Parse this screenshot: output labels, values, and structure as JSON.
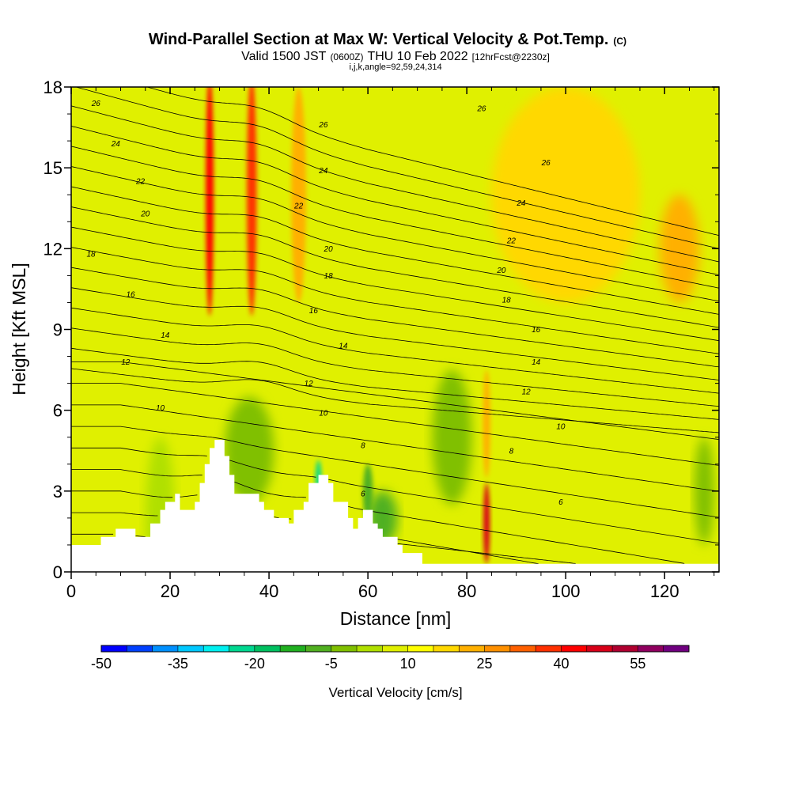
{
  "chart_data": {
    "type": "heatmap",
    "title": "Wind-Parallel Section at Max W: Vertical Velocity & Pot.Temp.",
    "title_unit": "(C)",
    "subtitle_valid": "Valid 1500 JST",
    "subtitle_utc": "(0600Z)",
    "subtitle_date": "THU 10 Feb 2022",
    "subtitle_fcst": "[12hrFcst@2230z]",
    "subtitle_index": "i,j,k,angle=92,59,24,314",
    "xlabel": "Distance [nm]",
    "ylabel": "Height [Kft MSL]",
    "xlim": [
      0,
      131
    ],
    "ylim": [
      0,
      18
    ],
    "xticks": [
      0,
      20,
      40,
      60,
      80,
      100,
      120
    ],
    "yticks": [
      0,
      3,
      6,
      9,
      12,
      15,
      18
    ],
    "colorbar": {
      "title": "Vertical Velocity [cm/s]",
      "min": -50,
      "max": 60,
      "step": 5,
      "tick_values": [
        -50,
        -35,
        -20,
        -5,
        10,
        25,
        40,
        55
      ],
      "colors": [
        "#0000ff",
        "#0040ff",
        "#0090ff",
        "#00c8ff",
        "#00f0f0",
        "#00d890",
        "#00c060",
        "#20b020",
        "#50b020",
        "#80c000",
        "#b0e000",
        "#e0f000",
        "#ffff00",
        "#ffd800",
        "#ffb000",
        "#ff9000",
        "#ff6000",
        "#ff3000",
        "#ff0000",
        "#d80018",
        "#b00030",
        "#900060",
        "#700080"
      ]
    },
    "terrain": [
      [
        0,
        1.0
      ],
      [
        6,
        1.0
      ],
      [
        6,
        1.3
      ],
      [
        9,
        1.3
      ],
      [
        9,
        1.6
      ],
      [
        13,
        1.6
      ],
      [
        13,
        1.3
      ],
      [
        16,
        1.3
      ],
      [
        16,
        1.8
      ],
      [
        18,
        1.8
      ],
      [
        18,
        2.3
      ],
      [
        19,
        2.3
      ],
      [
        19,
        2.6
      ],
      [
        21,
        2.6
      ],
      [
        21,
        2.9
      ],
      [
        22,
        2.9
      ],
      [
        22,
        2.3
      ],
      [
        25,
        2.3
      ],
      [
        25,
        2.6
      ],
      [
        26,
        2.6
      ],
      [
        26,
        3.3
      ],
      [
        27,
        3.3
      ],
      [
        27,
        4.0
      ],
      [
        28,
        4.0
      ],
      [
        28,
        4.6
      ],
      [
        29,
        4.6
      ],
      [
        29,
        4.9
      ],
      [
        31,
        4.9
      ],
      [
        31,
        4.3
      ],
      [
        32,
        4.3
      ],
      [
        32,
        3.6
      ],
      [
        33,
        3.6
      ],
      [
        33,
        2.9
      ],
      [
        38,
        2.9
      ],
      [
        38,
        2.6
      ],
      [
        39,
        2.6
      ],
      [
        39,
        2.3
      ],
      [
        41,
        2.3
      ],
      [
        41,
        2.0
      ],
      [
        44,
        2.0
      ],
      [
        44,
        1.8
      ],
      [
        45,
        1.8
      ],
      [
        45,
        2.3
      ],
      [
        47,
        2.3
      ],
      [
        47,
        2.6
      ],
      [
        48,
        2.6
      ],
      [
        48,
        3.3
      ],
      [
        50,
        3.3
      ],
      [
        50,
        3.6
      ],
      [
        52,
        3.6
      ],
      [
        52,
        3.3
      ],
      [
        53,
        3.3
      ],
      [
        53,
        2.6
      ],
      [
        56,
        2.6
      ],
      [
        56,
        2.0
      ],
      [
        57,
        2.0
      ],
      [
        57,
        1.6
      ],
      [
        58,
        1.6
      ],
      [
        58,
        2.0
      ],
      [
        59,
        2.0
      ],
      [
        59,
        2.3
      ],
      [
        61,
        2.3
      ],
      [
        61,
        1.8
      ],
      [
        62,
        1.8
      ],
      [
        62,
        1.6
      ],
      [
        63,
        1.6
      ],
      [
        63,
        1.3
      ],
      [
        66,
        1.3
      ],
      [
        66,
        1.0
      ],
      [
        67,
        1.0
      ],
      [
        67,
        0.7
      ],
      [
        71,
        0.7
      ],
      [
        71,
        0.3
      ],
      [
        131,
        0.3
      ]
    ],
    "w_field": {
      "background": 5,
      "features": [
        {
          "x": 18,
          "y": 2.0,
          "w": 6,
          "h": 6,
          "value": 2
        },
        {
          "x": 36,
          "y": 4.5,
          "w": 10,
          "h": 4,
          "value": -3
        },
        {
          "x": 50,
          "y": 3.4,
          "w": 1.2,
          "h": 1.5,
          "value": -25
        },
        {
          "x": 60,
          "y": 3.0,
          "w": 2,
          "h": 2,
          "value": -10
        },
        {
          "x": 63,
          "y": 2.0,
          "w": 6,
          "h": 2,
          "value": -8
        },
        {
          "x": 77,
          "y": 5.0,
          "w": 8,
          "h": 5,
          "value": -5
        },
        {
          "x": 84,
          "y": 1.8,
          "w": 1.3,
          "h": 3,
          "value": 45
        },
        {
          "x": 84,
          "y": 5.5,
          "w": 1.5,
          "h": 4,
          "value": 22
        },
        {
          "x": 28,
          "y": 14,
          "w": 1.6,
          "h": 9,
          "value": 40
        },
        {
          "x": 36.5,
          "y": 14,
          "w": 2,
          "h": 9,
          "value": 38
        },
        {
          "x": 46,
          "y": 14,
          "w": 3,
          "h": 8,
          "value": 20
        },
        {
          "x": 100,
          "y": 14,
          "w": 30,
          "h": 8,
          "value": 17
        },
        {
          "x": 123,
          "y": 12,
          "w": 8,
          "h": 4,
          "value": 20
        },
        {
          "x": 18,
          "y": 14,
          "w": 4,
          "h": 12,
          "value": 5
        },
        {
          "x": 10,
          "y": 12,
          "w": 6,
          "h": 10,
          "value": 7
        },
        {
          "x": 128,
          "y": 3,
          "w": 4,
          "h": 4,
          "value": -3
        }
      ]
    },
    "theta_contours": {
      "levels": [
        2,
        3,
        4,
        5,
        6,
        7,
        8,
        9,
        10,
        11,
        12,
        13,
        14,
        15,
        16,
        17,
        18,
        19,
        20,
        21,
        22,
        23,
        24,
        25,
        26,
        27,
        28
      ],
      "labels": [
        {
          "text": "26",
          "x": 5,
          "y": 17.4
        },
        {
          "text": "24",
          "x": 9,
          "y": 15.9
        },
        {
          "text": "22",
          "x": 14,
          "y": 14.5
        },
        {
          "text": "20",
          "x": 15,
          "y": 13.3
        },
        {
          "text": "18",
          "x": 4,
          "y": 11.8
        },
        {
          "text": "16",
          "x": 12,
          "y": 10.3
        },
        {
          "text": "14",
          "x": 19,
          "y": 8.8
        },
        {
          "text": "12",
          "x": 11,
          "y": 7.8
        },
        {
          "text": "10",
          "x": 18,
          "y": 6.1
        },
        {
          "text": "26",
          "x": 51,
          "y": 16.6
        },
        {
          "text": "24",
          "x": 51,
          "y": 14.9
        },
        {
          "text": "22",
          "x": 46,
          "y": 13.6
        },
        {
          "text": "20",
          "x": 52,
          "y": 12.0
        },
        {
          "text": "18",
          "x": 52,
          "y": 11.0
        },
        {
          "text": "16",
          "x": 49,
          "y": 9.7
        },
        {
          "text": "14",
          "x": 55,
          "y": 8.4
        },
        {
          "text": "12",
          "x": 48,
          "y": 7.0
        },
        {
          "text": "10",
          "x": 51,
          "y": 5.9
        },
        {
          "text": "8",
          "x": 59,
          "y": 4.7
        },
        {
          "text": "6",
          "x": 59,
          "y": 2.9
        },
        {
          "text": "26",
          "x": 83,
          "y": 17.2
        },
        {
          "text": "26",
          "x": 96,
          "y": 15.2
        },
        {
          "text": "24",
          "x": 91,
          "y": 13.7
        },
        {
          "text": "22",
          "x": 89,
          "y": 12.3
        },
        {
          "text": "20",
          "x": 87,
          "y": 11.2
        },
        {
          "text": "18",
          "x": 88,
          "y": 10.1
        },
        {
          "text": "16",
          "x": 94,
          "y": 9.0
        },
        {
          "text": "14",
          "x": 94,
          "y": 7.8
        },
        {
          "text": "12",
          "x": 92,
          "y": 6.7
        },
        {
          "text": "10",
          "x": 99,
          "y": 5.4
        },
        {
          "text": "8",
          "x": 89,
          "y": 4.5
        },
        {
          "text": "6",
          "x": 99,
          "y": 2.6
        }
      ]
    }
  }
}
